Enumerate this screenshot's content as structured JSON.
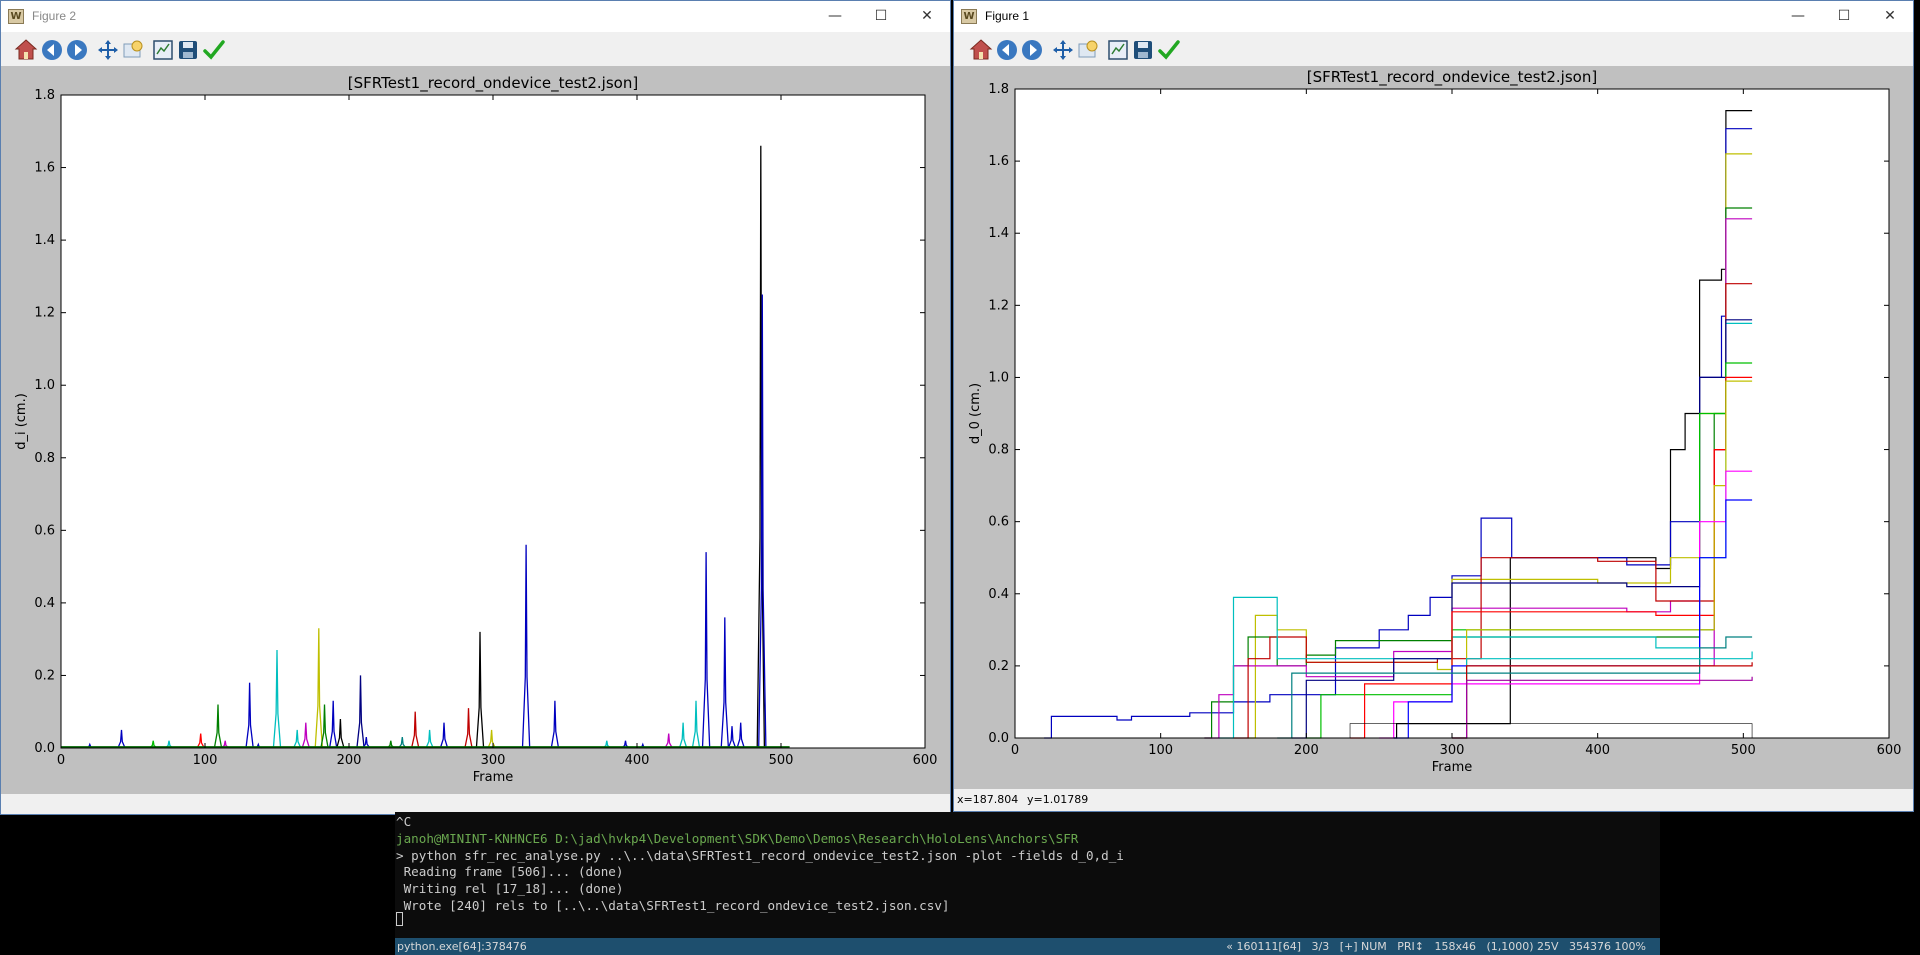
{
  "figure2": {
    "title": "Figure 2",
    "plot_title": "[SFRTest1_record_ondevice_test2.json]",
    "status_text": ""
  },
  "figure1": {
    "title": "Figure 1",
    "plot_title": "[SFRTest1_record_ondevice_test2.json]",
    "status_x": "x=187.804",
    "status_y": "y=1.01789"
  },
  "window_buttons": {
    "minimize": "—",
    "maximize": "☐",
    "close": "✕"
  },
  "toolbar_icons": [
    "home-icon",
    "back-icon",
    "forward-icon",
    "pan-icon",
    "zoom-icon",
    "subplots-icon",
    "save-icon",
    "check-icon"
  ],
  "chart_data": [
    {
      "type": "line",
      "title": "[SFRTest1_record_ondevice_test2.json]",
      "xlabel": "Frame",
      "ylabel": "d_i (cm.)",
      "xlim": [
        0,
        600
      ],
      "ylim": [
        0,
        1.8
      ],
      "xticks": [
        "0",
        "100",
        "200",
        "300",
        "400",
        "500",
        "600"
      ],
      "yticks": [
        "0.0",
        "0.2",
        "0.4",
        "0.6",
        "0.8",
        "1.0",
        "1.2",
        "1.4",
        "1.6",
        "1.8"
      ],
      "grid": false,
      "spikes": [
        {
          "x": 20,
          "y": 0.01,
          "color": "#0000bf"
        },
        {
          "x": 42,
          "y": 0.05,
          "color": "#0000bf"
        },
        {
          "x": 64,
          "y": 0.02,
          "color": "#00bf00"
        },
        {
          "x": 75,
          "y": 0.02,
          "color": "#00bfbf"
        },
        {
          "x": 97,
          "y": 0.04,
          "color": "#ff0000"
        },
        {
          "x": 109,
          "y": 0.12,
          "color": "#008000"
        },
        {
          "x": 114,
          "y": 0.02,
          "color": "#bf00bf"
        },
        {
          "x": 131,
          "y": 0.18,
          "color": "#0000bf"
        },
        {
          "x": 137,
          "y": 0.01,
          "color": "#0000bf"
        },
        {
          "x": 150,
          "y": 0.27,
          "color": "#00bfbf"
        },
        {
          "x": 164,
          "y": 0.05,
          "color": "#00bfbf"
        },
        {
          "x": 170,
          "y": 0.07,
          "color": "#bf00bf"
        },
        {
          "x": 179,
          "y": 0.33,
          "color": "#bfbf00"
        },
        {
          "x": 183,
          "y": 0.12,
          "color": "#008000"
        },
        {
          "x": 189,
          "y": 0.13,
          "color": "#0000bf"
        },
        {
          "x": 194,
          "y": 0.08,
          "color": "#000000"
        },
        {
          "x": 208,
          "y": 0.2,
          "color": "#000080"
        },
        {
          "x": 212,
          "y": 0.03,
          "color": "#0000bf"
        },
        {
          "x": 229,
          "y": 0.02,
          "color": "#008000"
        },
        {
          "x": 237,
          "y": 0.03,
          "color": "#008080"
        },
        {
          "x": 246,
          "y": 0.1,
          "color": "#bf0000"
        },
        {
          "x": 256,
          "y": 0.05,
          "color": "#00bfbf"
        },
        {
          "x": 266,
          "y": 0.07,
          "color": "#0000bf"
        },
        {
          "x": 283,
          "y": 0.11,
          "color": "#bf0000"
        },
        {
          "x": 291,
          "y": 0.32,
          "color": "#000000"
        },
        {
          "x": 299,
          "y": 0.05,
          "color": "#bfbf00"
        },
        {
          "x": 323,
          "y": 0.56,
          "color": "#0000bf"
        },
        {
          "x": 343,
          "y": 0.13,
          "color": "#0000bf"
        },
        {
          "x": 379,
          "y": 0.02,
          "color": "#00bfbf"
        },
        {
          "x": 392,
          "y": 0.02,
          "color": "#0000bf"
        },
        {
          "x": 404,
          "y": 0.01,
          "color": "#0000bf"
        },
        {
          "x": 422,
          "y": 0.04,
          "color": "#bf00bf"
        },
        {
          "x": 432,
          "y": 0.07,
          "color": "#00bfbf"
        },
        {
          "x": 441,
          "y": 0.13,
          "color": "#00bfbf"
        },
        {
          "x": 448,
          "y": 0.54,
          "color": "#0000bf"
        },
        {
          "x": 461,
          "y": 0.36,
          "color": "#0000bf"
        },
        {
          "x": 466,
          "y": 0.06,
          "color": "#0000bf"
        },
        {
          "x": 472,
          "y": 0.07,
          "color": "#0000bf"
        },
        {
          "x": 486,
          "y": 1.66,
          "color": "#000000"
        },
        {
          "x": 487,
          "y": 1.25,
          "color": "#0000bf"
        }
      ]
    },
    {
      "type": "line",
      "title": "[SFRTest1_record_ondevice_test2.json]",
      "xlabel": "Frame",
      "ylabel": "d_0 (cm.)",
      "xlim": [
        0,
        600
      ],
      "ylim": [
        0,
        1.8
      ],
      "xticks": [
        "0",
        "100",
        "200",
        "300",
        "400",
        "500",
        "600"
      ],
      "yticks": [
        "0.0",
        "0.2",
        "0.4",
        "0.6",
        "0.8",
        "1.0",
        "1.2",
        "1.4",
        "1.6",
        "1.8"
      ],
      "grid": false,
      "series": [
        {
          "color": "#000000",
          "points": [
            [
              260,
              0
            ],
            [
              262,
              0.04
            ],
            [
              340,
              0.04
            ],
            [
              340,
              0.5
            ],
            [
              440,
              0.47
            ],
            [
              450,
              0.8
            ],
            [
              460,
              0.9
            ],
            [
              470,
              1.27
            ],
            [
              485,
              1.3
            ],
            [
              488,
              1.74
            ],
            [
              506,
              1.74
            ]
          ]
        },
        {
          "color": "#0000bf",
          "points": [
            [
              20,
              0
            ],
            [
              25,
              0.06
            ],
            [
              70,
              0.05
            ],
            [
              80,
              0.06
            ],
            [
              120,
              0.07
            ],
            [
              150,
              0.1
            ],
            [
              175,
              0.12
            ],
            [
              200,
              0.12
            ],
            [
              220,
              0.25
            ],
            [
              250,
              0.3
            ],
            [
              270,
              0.34
            ],
            [
              285,
              0.39
            ],
            [
              300,
              0.45
            ],
            [
              320,
              0.61
            ],
            [
              340,
              0.61
            ],
            [
              341,
              0.5
            ],
            [
              420,
              0.48
            ],
            [
              450,
              0.6
            ],
            [
              470,
              1.0
            ],
            [
              485,
              1.17
            ],
            [
              488,
              1.69
            ],
            [
              506,
              1.69
            ]
          ]
        },
        {
          "color": "#bfbf00",
          "points": [
            [
              160,
              0
            ],
            [
              165,
              0.34
            ],
            [
              180,
              0.3
            ],
            [
              200,
              0.21
            ],
            [
              290,
              0.19
            ],
            [
              300,
              0.44
            ],
            [
              400,
              0.43
            ],
            [
              450,
              0.5
            ],
            [
              470,
              0.9
            ],
            [
              488,
              1.62
            ],
            [
              506,
              1.62
            ]
          ]
        },
        {
          "color": "#008000",
          "points": [
            [
              130,
              0
            ],
            [
              135,
              0.1
            ],
            [
              150,
              0.2
            ],
            [
              160,
              0.28
            ],
            [
              180,
              0.2
            ],
            [
              200,
              0.23
            ],
            [
              220,
              0.27
            ],
            [
              300,
              0.28
            ],
            [
              420,
              0.28
            ],
            [
              470,
              0.3
            ],
            [
              480,
              0.9
            ],
            [
              488,
              1.47
            ],
            [
              506,
              1.47
            ]
          ]
        },
        {
          "color": "#bf00bf",
          "points": [
            [
              130,
              0
            ],
            [
              140,
              0.12
            ],
            [
              150,
              0.2
            ],
            [
              175,
              0.2
            ],
            [
              200,
              0.17
            ],
            [
              260,
              0.24
            ],
            [
              300,
              0.36
            ],
            [
              420,
              0.35
            ],
            [
              450,
              0.38
            ],
            [
              470,
              0.2
            ],
            [
              480,
              0.8
            ],
            [
              488,
              1.44
            ],
            [
              506,
              1.44
            ]
          ]
        },
        {
          "color": "#bf0000",
          "points": [
            [
              150,
              0
            ],
            [
              160,
              0.22
            ],
            [
              175,
              0.28
            ],
            [
              200,
              0.21
            ],
            [
              290,
              0.22
            ],
            [
              300,
              0.22
            ],
            [
              320,
              0.5
            ],
            [
              400,
              0.49
            ],
            [
              440,
              0.38
            ],
            [
              480,
              0.8
            ],
            [
              488,
              1.26
            ],
            [
              506,
              1.26
            ]
          ]
        },
        {
          "color": "#00bfbf",
          "points": [
            [
              140,
              0
            ],
            [
              150,
              0.39
            ],
            [
              175,
              0.39
            ],
            [
              180,
              0.22
            ],
            [
              300,
              0.28
            ],
            [
              440,
              0.25
            ],
            [
              470,
              0.5
            ],
            [
              488,
              1.15
            ],
            [
              506,
              1.15
            ]
          ]
        },
        {
          "color": "#000080",
          "points": [
            [
              190,
              0
            ],
            [
              200,
              0.16
            ],
            [
              260,
              0.22
            ],
            [
              300,
              0.43
            ],
            [
              420,
              0.42
            ],
            [
              470,
              1.0
            ],
            [
              488,
              1.16
            ],
            [
              506,
              1.16
            ]
          ]
        },
        {
          "color": "#00bf00",
          "points": [
            [
              200,
              0
            ],
            [
              210,
              0.12
            ],
            [
              300,
              0.3
            ],
            [
              440,
              0.3
            ],
            [
              470,
              0.9
            ],
            [
              488,
              1.04
            ],
            [
              506,
              1.04
            ]
          ]
        },
        {
          "color": "#ff0000",
          "points": [
            [
              230,
              0
            ],
            [
              240,
              0.15
            ],
            [
              300,
              0.35
            ],
            [
              440,
              0.34
            ],
            [
              480,
              0.8
            ],
            [
              488,
              1.0
            ],
            [
              506,
              1.0
            ]
          ]
        },
        {
          "color": "#c0c000",
          "points": [
            [
              300,
              0
            ],
            [
              310,
              0.3
            ],
            [
              440,
              0.3
            ],
            [
              480,
              0.7
            ],
            [
              488,
              0.99
            ],
            [
              506,
              0.99
            ]
          ]
        },
        {
          "color": "#ff00ff",
          "points": [
            [
              250,
              0
            ],
            [
              260,
              0.1
            ],
            [
              300,
              0.15
            ],
            [
              440,
              0.15
            ],
            [
              470,
              0.6
            ],
            [
              488,
              0.74
            ],
            [
              506,
              0.74
            ]
          ]
        },
        {
          "color": "#0000ff",
          "points": [
            [
              260,
              0
            ],
            [
              270,
              0.1
            ],
            [
              300,
              0.2
            ],
            [
              440,
              0.2
            ],
            [
              470,
              0.5
            ],
            [
              488,
              0.66
            ],
            [
              506,
              0.66
            ]
          ]
        },
        {
          "color": "#008080",
          "points": [
            [
              180,
              0
            ],
            [
              190,
              0.18
            ],
            [
              440,
              0.18
            ],
            [
              470,
              0.25
            ],
            [
              488,
              0.28
            ],
            [
              506,
              0.28
            ]
          ]
        },
        {
          "color": "#00c0c0",
          "points": [
            [
              300,
              0
            ],
            [
              310,
              0.22
            ],
            [
              506,
              0.24
            ]
          ]
        },
        {
          "color": "#c00000",
          "points": [
            [
              300,
              0
            ],
            [
              310,
              0.2
            ],
            [
              506,
              0.21
            ]
          ]
        },
        {
          "color": "#a000a0",
          "points": [
            [
              300,
              0
            ],
            [
              310,
              0.16
            ],
            [
              506,
              0.17
            ]
          ]
        }
      ]
    }
  ],
  "console": {
    "lines": [
      {
        "text": "^C",
        "color": "#cccccc"
      },
      {
        "text": "janoh@MININT-KNHNCE6 D:\\jad\\hvkp4\\Development\\SDK\\Demo\\Demos\\Research\\HoloLens\\Anchors\\SFR",
        "color": "#6aa84f"
      },
      {
        "text": "> python sfr_rec_analyse.py ..\\..\\data\\SFRTest1_record_ondevice_test2.json -plot -fields d_0,d_i",
        "color": "#cccccc"
      },
      {
        "text": " Reading frame [506]... (done)",
        "color": "#cccccc"
      },
      {
        "text": " Writing rel [17_18]... (done)",
        "color": "#cccccc"
      },
      {
        "text": " Wrote [240] rels to [..\\..\\data\\SFRTest1_record_ondevice_test2.json.csv]",
        "color": "#cccccc"
      }
    ],
    "status_left": "python.exe[64]:378476",
    "status_right": "« 160111[64]   3/3   [+] NUM   PRI↕   158x46   (1,1000) 25V   354376 100%"
  }
}
